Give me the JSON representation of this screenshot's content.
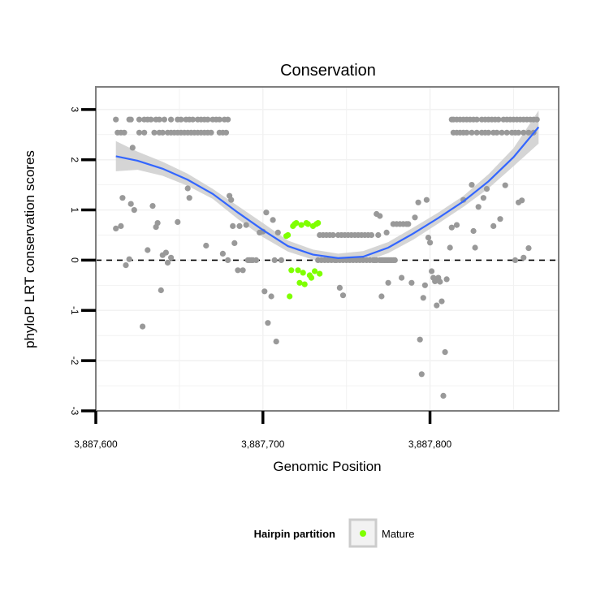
{
  "chart_data": {
    "type": "scatter",
    "title": "Conservation",
    "xlabel": "Genomic Position",
    "ylabel": "phyloP LRT conservation scores",
    "xlim": [
      3887600,
      3887877
    ],
    "ylim": [
      -3,
      3.45
    ],
    "x_ticks": [
      3887600,
      3887700,
      3887800
    ],
    "x_tick_labels": [
      "3,887,600",
      "3,887,700",
      "3,887,800"
    ],
    "y_ticks": [
      -3,
      -2,
      -1,
      0,
      1,
      2,
      3
    ],
    "y_tick_labels": [
      "-3",
      "-2",
      "-1",
      "0",
      "1",
      "2",
      "3"
    ],
    "grid": true,
    "reference_line": {
      "y": 0,
      "style": "dashed"
    },
    "legend": {
      "title": "Hairpin partition",
      "position": "bottom",
      "entries": [
        {
          "label": "Mature",
          "color": "#7fff00"
        }
      ]
    },
    "colors": {
      "points": "#999999",
      "mature": "#7fff00",
      "smooth": "#3366ff",
      "ci": "#d0d0d0",
      "panel": "#ffffff",
      "grid": "#f2f2f2"
    },
    "smooth_curve": {
      "x": [
        3887612,
        3887625,
        3887640,
        3887655,
        3887670,
        3887685,
        3887700,
        3887715,
        3887730,
        3887745,
        3887760,
        3887775,
        3887790,
        3887805,
        3887820,
        3887835,
        3887850,
        3887865
      ],
      "y": [
        2.07,
        1.98,
        1.82,
        1.6,
        1.32,
        0.95,
        0.6,
        0.28,
        0.11,
        0.04,
        0.07,
        0.25,
        0.53,
        0.84,
        1.17,
        1.57,
        2.05,
        2.65
      ]
    },
    "ci_band": {
      "lower": [
        1.77,
        1.8,
        1.68,
        1.48,
        1.22,
        0.82,
        0.46,
        0.17,
        0.01,
        -0.05,
        -0.04,
        0.14,
        0.41,
        0.73,
        1.06,
        1.43,
        1.87,
        2.32
      ],
      "upper": [
        2.37,
        2.16,
        1.96,
        1.72,
        1.42,
        1.08,
        0.74,
        0.39,
        0.21,
        0.13,
        0.18,
        0.36,
        0.65,
        0.95,
        1.28,
        1.71,
        2.23,
        2.98
      ]
    },
    "series": [
      {
        "points": [
          [
            3887612,
            2.8
          ],
          [
            3887620,
            2.8
          ],
          [
            3887621,
            2.8
          ],
          [
            3887626,
            2.8
          ],
          [
            3887629,
            2.8
          ],
          [
            3887631,
            2.8
          ],
          [
            3887633,
            2.8
          ],
          [
            3887636,
            2.8
          ],
          [
            3887638,
            2.8
          ],
          [
            3887641,
            2.8
          ],
          [
            3887645,
            2.8
          ],
          [
            3887649,
            2.8
          ],
          [
            3887651,
            2.8
          ],
          [
            3887654,
            2.8
          ],
          [
            3887656,
            2.8
          ],
          [
            3887658,
            2.8
          ],
          [
            3887661,
            2.8
          ],
          [
            3887663,
            2.8
          ],
          [
            3887665,
            2.8
          ],
          [
            3887667,
            2.8
          ],
          [
            3887670,
            2.8
          ],
          [
            3887672,
            2.8
          ],
          [
            3887674,
            2.8
          ],
          [
            3887677,
            2.8
          ],
          [
            3887679,
            2.8
          ],
          [
            3887613,
            2.54
          ],
          [
            3887615,
            2.54
          ],
          [
            3887617,
            2.54
          ],
          [
            3887626,
            2.54
          ],
          [
            3887629,
            2.54
          ],
          [
            3887635,
            2.54
          ],
          [
            3887638,
            2.54
          ],
          [
            3887640,
            2.54
          ],
          [
            3887643,
            2.54
          ],
          [
            3887645,
            2.54
          ],
          [
            3887647,
            2.54
          ],
          [
            3887649,
            2.54
          ],
          [
            3887651,
            2.54
          ],
          [
            3887653,
            2.54
          ],
          [
            3887655,
            2.54
          ],
          [
            3887657,
            2.54
          ],
          [
            3887659,
            2.54
          ],
          [
            3887661,
            2.54
          ],
          [
            3887663,
            2.54
          ],
          [
            3887665,
            2.54
          ],
          [
            3887667,
            2.54
          ],
          [
            3887669,
            2.54
          ],
          [
            3887674,
            2.54
          ],
          [
            3887676,
            2.54
          ],
          [
            3887678,
            2.54
          ],
          [
            3887612,
            0.63
          ],
          [
            3887615,
            0.68
          ],
          [
            3887616,
            1.24
          ],
          [
            3887618,
            -0.1
          ],
          [
            3887620,
            0.02
          ],
          [
            3887621,
            1.12
          ],
          [
            3887622,
            2.24
          ],
          [
            3887623,
            1.0
          ],
          [
            3887628,
            -1.32
          ],
          [
            3887631,
            0.2
          ],
          [
            3887634,
            1.08
          ],
          [
            3887636,
            0.66
          ],
          [
            3887637,
            0.74
          ],
          [
            3887639,
            -0.6
          ],
          [
            3887640,
            0.1
          ],
          [
            3887642,
            0.15
          ],
          [
            3887643,
            -0.05
          ],
          [
            3887645,
            0.05
          ],
          [
            3887649,
            0.76
          ],
          [
            3887655,
            1.43
          ],
          [
            3887656,
            1.24
          ],
          [
            3887666,
            0.29
          ],
          [
            3887676,
            0.13
          ],
          [
            3887679,
            0.0
          ],
          [
            3887680,
            1.28
          ],
          [
            3887681,
            1.2
          ],
          [
            3887682,
            0.68
          ],
          [
            3887683,
            0.34
          ],
          [
            3887685,
            -0.2
          ],
          [
            3887686,
            0.68
          ],
          [
            3887688,
            -0.2
          ],
          [
            3887690,
            0.7
          ],
          [
            3887691,
            0.0
          ],
          [
            3887692,
            0.0
          ],
          [
            3887693,
            0.0
          ],
          [
            3887694,
            0.0
          ],
          [
            3887696,
            0.0
          ],
          [
            3887698,
            0.55
          ],
          [
            3887700,
            0.57
          ],
          [
            3887701,
            -0.62
          ],
          [
            3887702,
            0.95
          ],
          [
            3887703,
            -1.25
          ],
          [
            3887705,
            -0.72
          ],
          [
            3887706,
            0.8
          ],
          [
            3887707,
            0.0
          ],
          [
            3887708,
            -1.62
          ],
          [
            3887709,
            0.55
          ],
          [
            3887711,
            0.0
          ],
          [
            3887733,
            0.0
          ],
          [
            3887734,
            0.5
          ],
          [
            3887735,
            0.0
          ],
          [
            3887736,
            0.5
          ],
          [
            3887737,
            0.0
          ],
          [
            3887738,
            0.5
          ],
          [
            3887739,
            0.0
          ],
          [
            3887740,
            0.5
          ],
          [
            3887741,
            0.0
          ],
          [
            3887742,
            0.5
          ],
          [
            3887743,
            0.0
          ],
          [
            3887744,
            0.0
          ],
          [
            3887745,
            0.5
          ],
          [
            3887746,
            0.0
          ],
          [
            3887747,
            0.5
          ],
          [
            3887748,
            0.0
          ],
          [
            3887749,
            0.5
          ],
          [
            3887750,
            0.0
          ],
          [
            3887751,
            0.5
          ],
          [
            3887752,
            0.0
          ],
          [
            3887753,
            0.5
          ],
          [
            3887754,
            0.0
          ],
          [
            3887755,
            0.5
          ],
          [
            3887756,
            0.0
          ],
          [
            3887757,
            0.5
          ],
          [
            3887758,
            0.0
          ],
          [
            3887759,
            0.5
          ],
          [
            3887760,
            0.0
          ],
          [
            3887761,
            0.5
          ],
          [
            3887762,
            0.0
          ],
          [
            3887763,
            0.5
          ],
          [
            3887764,
            0.0
          ],
          [
            3887765,
            0.5
          ],
          [
            3887766,
            0.0
          ],
          [
            3887767,
            0.0
          ],
          [
            3887768,
            0.0
          ],
          [
            3887769,
            0.5
          ],
          [
            3887770,
            0.0
          ],
          [
            3887771,
            0.0
          ],
          [
            3887772,
            0.0
          ],
          [
            3887773,
            0.0
          ],
          [
            3887774,
            0.0
          ],
          [
            3887775,
            0.0
          ],
          [
            3887776,
            0.0
          ],
          [
            3887777,
            0.0
          ],
          [
            3887778,
            0.0
          ],
          [
            3887779,
            0.0
          ],
          [
            3887746,
            -0.55
          ],
          [
            3887748,
            -0.7
          ],
          [
            3887768,
            0.92
          ],
          [
            3887770,
            0.88
          ],
          [
            3887771,
            -0.72
          ],
          [
            3887774,
            0.55
          ],
          [
            3887775,
            -0.45
          ],
          [
            3887778,
            0.72
          ],
          [
            3887780,
            0.72
          ],
          [
            3887782,
            0.72
          ],
          [
            3887783,
            -0.35
          ],
          [
            3887784,
            0.72
          ],
          [
            3887786,
            0.72
          ],
          [
            3887787,
            0.72
          ],
          [
            3887789,
            -0.45
          ],
          [
            3887791,
            0.85
          ],
          [
            3887793,
            1.15
          ],
          [
            3887794,
            -1.58
          ],
          [
            3887795,
            -2.27
          ],
          [
            3887796,
            -0.75
          ],
          [
            3887797,
            -0.5
          ],
          [
            3887798,
            1.2
          ],
          [
            3887799,
            0.45
          ],
          [
            3887800,
            0.35
          ],
          [
            3887801,
            -0.22
          ],
          [
            3887802,
            -0.35
          ],
          [
            3887803,
            -0.42
          ],
          [
            3887804,
            -0.9
          ],
          [
            3887805,
            -0.35
          ],
          [
            3887806,
            -0.43
          ],
          [
            3887807,
            -0.82
          ],
          [
            3887808,
            -2.7
          ],
          [
            3887809,
            -1.83
          ],
          [
            3887810,
            -0.38
          ],
          [
            3887812,
            0.25
          ],
          [
            3887813,
            0.65
          ],
          [
            3887813,
            2.8
          ],
          [
            3887814,
            2.8
          ],
          [
            3887816,
            2.8
          ],
          [
            3887818,
            2.8
          ],
          [
            3887820,
            2.8
          ],
          [
            3887822,
            2.8
          ],
          [
            3887824,
            2.8
          ],
          [
            3887826,
            2.8
          ],
          [
            3887828,
            2.8
          ],
          [
            3887831,
            2.8
          ],
          [
            3887833,
            2.8
          ],
          [
            3887835,
            2.8
          ],
          [
            3887837,
            2.8
          ],
          [
            3887839,
            2.8
          ],
          [
            3887841,
            2.8
          ],
          [
            3887844,
            2.8
          ],
          [
            3887846,
            2.8
          ],
          [
            3887848,
            2.8
          ],
          [
            3887850,
            2.8
          ],
          [
            3887852,
            2.8
          ],
          [
            3887854,
            2.8
          ],
          [
            3887856,
            2.8
          ],
          [
            3887858,
            2.8
          ],
          [
            3887860,
            2.8
          ],
          [
            3887862,
            2.8
          ],
          [
            3887864,
            2.8
          ],
          [
            3887814,
            2.54
          ],
          [
            3887816,
            2.54
          ],
          [
            3887818,
            2.54
          ],
          [
            3887820,
            2.54
          ],
          [
            3887822,
            2.54
          ],
          [
            3887825,
            2.54
          ],
          [
            3887828,
            2.54
          ],
          [
            3887831,
            2.54
          ],
          [
            3887833,
            2.54
          ],
          [
            3887835,
            2.54
          ],
          [
            3887838,
            2.54
          ],
          [
            3887840,
            2.54
          ],
          [
            3887843,
            2.54
          ],
          [
            3887846,
            2.54
          ],
          [
            3887849,
            2.54
          ],
          [
            3887851,
            2.54
          ],
          [
            3887853,
            2.54
          ],
          [
            3887856,
            2.54
          ],
          [
            3887859,
            2.54
          ],
          [
            3887862,
            2.54
          ],
          [
            3887816,
            0.7
          ],
          [
            3887820,
            1.2
          ],
          [
            3887825,
            1.5
          ],
          [
            3887826,
            0.58
          ],
          [
            3887827,
            0.25
          ],
          [
            3887829,
            1.06
          ],
          [
            3887832,
            1.24
          ],
          [
            3887834,
            1.42
          ],
          [
            3887838,
            0.68
          ],
          [
            3887842,
            0.82
          ],
          [
            3887845,
            1.49
          ],
          [
            3887851,
            0.0
          ],
          [
            3887853,
            1.15
          ],
          [
            3887855,
            1.19
          ],
          [
            3887856,
            0.05
          ],
          [
            3887859,
            0.24
          ]
        ]
      },
      {
        "name": "Mature",
        "points": [
          [
            3887714,
            0.48
          ],
          [
            3887715,
            0.5
          ],
          [
            3887716,
            -0.72
          ],
          [
            3887717,
            -0.2
          ],
          [
            3887718,
            0.68
          ],
          [
            3887719,
            0.72
          ],
          [
            3887720,
            0.74
          ],
          [
            3887721,
            -0.2
          ],
          [
            3887722,
            -0.45
          ],
          [
            3887723,
            0.7
          ],
          [
            3887724,
            -0.25
          ],
          [
            3887725,
            -0.48
          ],
          [
            3887726,
            0.74
          ],
          [
            3887727,
            0.72
          ],
          [
            3887728,
            -0.3
          ],
          [
            3887729,
            -0.35
          ],
          [
            3887730,
            0.68
          ],
          [
            3887731,
            -0.22
          ],
          [
            3887732,
            0.72
          ],
          [
            3887733,
            0.74
          ],
          [
            3887734,
            -0.27
          ]
        ]
      }
    ]
  }
}
